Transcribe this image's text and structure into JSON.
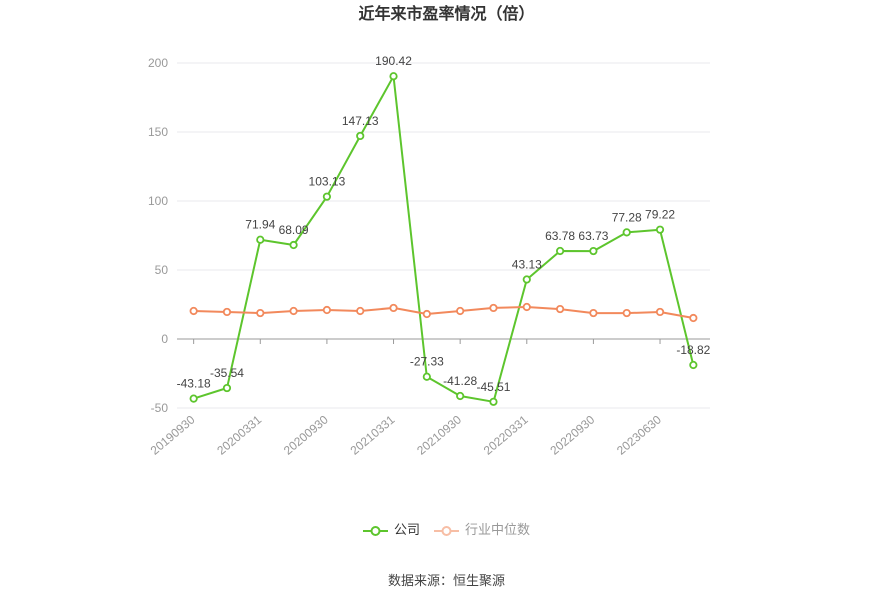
{
  "source": "数据来源：恒生聚源",
  "chart_data": {
    "type": "line",
    "title": "近年来市盈率情况（倍）",
    "categories": [
      "20190930",
      "",
      "20200331",
      "",
      "20200930",
      "",
      "20210331",
      "",
      "20210930",
      "",
      "20220331",
      "",
      "20220930",
      "",
      "20230630",
      ""
    ],
    "ylim": [
      -50,
      200
    ],
    "yticks": [
      -50,
      0,
      50,
      100,
      150,
      200
    ],
    "grid": true,
    "legend_position": "bottom",
    "series": [
      {
        "name": "公司",
        "color": "#5dc52d",
        "show_labels": true,
        "values": [
          -43.18,
          -35.54,
          71.94,
          68.09,
          103.13,
          147.13,
          190.42,
          -27.33,
          -41.28,
          -45.51,
          43.13,
          63.78,
          63.73,
          77.28,
          79.22,
          -18.82
        ]
      },
      {
        "name": "行业中位数",
        "color": "#f2895c",
        "show_labels": false,
        "values": [
          20.3,
          19.6,
          18.8,
          20.3,
          21.0,
          20.3,
          22.5,
          18.1,
          20.3,
          22.5,
          23.2,
          21.7,
          18.8,
          18.8,
          19.6,
          15.2
        ]
      }
    ]
  }
}
